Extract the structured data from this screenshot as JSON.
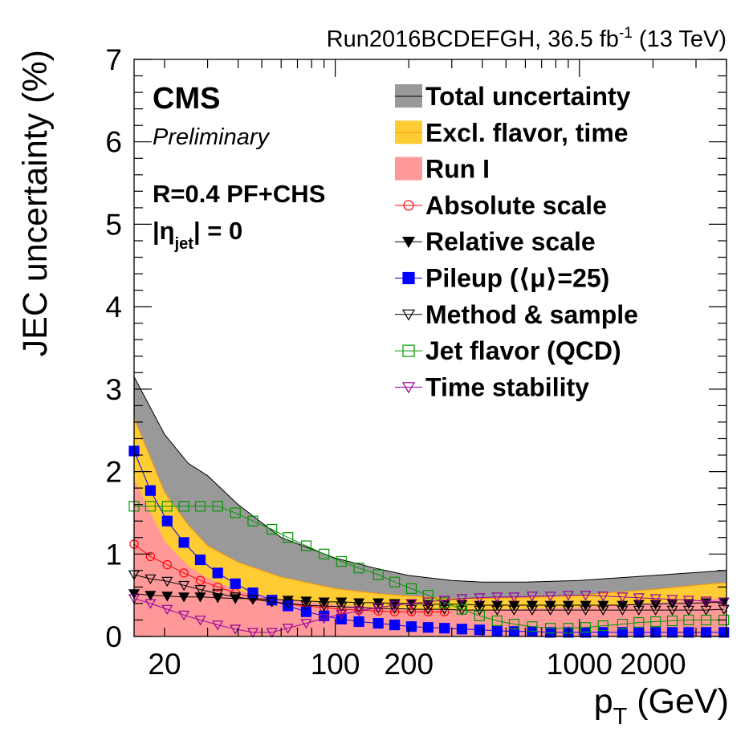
{
  "chart_data": {
    "type": "area",
    "top_label": {
      "prefix": "Run2016BCDEFGH, 36.5 fb",
      "exp": "-1",
      "suffix": " (13 TeV)"
    },
    "cms_label": "CMS",
    "preliminary_label": "Preliminary",
    "jet_label": "R=0.4 PF+CHS",
    "eta_label": {
      "left": "|η",
      "sub": "jet",
      "right": "| = 0"
    },
    "ylabel": "JEC uncertainty (%)",
    "xlabel": {
      "main": "p",
      "sub": "T",
      "unit": " (GeV)"
    },
    "xscale": "log",
    "xlim": [
      15,
      4000
    ],
    "ylim": [
      0,
      7
    ],
    "yticks": [
      "0",
      "1",
      "2",
      "3",
      "4",
      "5",
      "6",
      "7"
    ],
    "xticks": [
      {
        "value": 20,
        "label": "20"
      },
      {
        "value": 100,
        "label": "100"
      },
      {
        "value": 200,
        "label": "200"
      },
      {
        "value": 1000,
        "label": "1000"
      },
      {
        "value": 2000,
        "label": "2000"
      }
    ],
    "legend_position": "top-right",
    "bands": [
      {
        "name": "Total uncertainty",
        "color": "#999999",
        "line": "#000000",
        "x": [
          15,
          20,
          25,
          30,
          40,
          60,
          100,
          150,
          200,
          300,
          400,
          600,
          1000,
          2000,
          3500,
          4000
        ],
        "values": [
          3.15,
          2.45,
          2.1,
          1.95,
          1.6,
          1.2,
          0.95,
          0.82,
          0.74,
          0.68,
          0.66,
          0.66,
          0.68,
          0.74,
          0.79,
          0.8
        ]
      },
      {
        "name": "Excl. flavor, time",
        "color": "#ffcc33",
        "line": "#ff9900",
        "x": [
          15,
          20,
          25,
          30,
          40,
          60,
          100,
          150,
          200,
          300,
          400,
          600,
          1000,
          2000,
          3500,
          4000
        ],
        "values": [
          2.65,
          1.75,
          1.35,
          1.1,
          0.9,
          0.72,
          0.58,
          0.52,
          0.49,
          0.46,
          0.46,
          0.47,
          0.5,
          0.57,
          0.64,
          0.65
        ]
      },
      {
        "name": "Run I",
        "color": "#ff9999",
        "line": "#ff9999",
        "x": [
          15,
          20,
          25,
          30,
          40,
          60,
          100,
          150,
          200,
          300,
          400,
          600,
          1000,
          2000,
          3500,
          4000
        ],
        "values": [
          1.9,
          1.15,
          0.85,
          0.7,
          0.55,
          0.45,
          0.38,
          0.35,
          0.33,
          0.32,
          0.32,
          0.33,
          0.35,
          0.4,
          0.45,
          0.47
        ]
      }
    ],
    "series": [
      {
        "name": "Absolute scale",
        "color": "#ff0000",
        "marker": "circle-open",
        "x": [
          15,
          17.5,
          20.5,
          24,
          28,
          33,
          39,
          46,
          55,
          64,
          76,
          90,
          106,
          125,
          150,
          175,
          205,
          240,
          280
        ],
        "values": [
          1.12,
          0.97,
          0.87,
          0.77,
          0.68,
          0.6,
          0.53,
          0.47,
          0.43,
          0.39,
          0.37,
          0.35,
          0.33,
          0.32,
          0.31,
          0.3,
          0.3,
          0.3,
          0.3
        ]
      },
      {
        "name": "Relative scale",
        "color": "#000000",
        "marker": "triangle-down-filled",
        "x": [
          15,
          17.5,
          20.5,
          24,
          28,
          33,
          39,
          46,
          55,
          64,
          76,
          90,
          106,
          125,
          150,
          175,
          205,
          240,
          280,
          330,
          390,
          460,
          540,
          640,
          760,
          900,
          1060,
          1250,
          1500,
          1750,
          2050,
          2400,
          2800,
          3300,
          3900
        ],
        "values": [
          0.52,
          0.5,
          0.49,
          0.48,
          0.48,
          0.47,
          0.46,
          0.46,
          0.45,
          0.44,
          0.43,
          0.42,
          0.42,
          0.41,
          0.41,
          0.4,
          0.4,
          0.39,
          0.39,
          0.39,
          0.38,
          0.38,
          0.38,
          0.38,
          0.38,
          0.38,
          0.38,
          0.38,
          0.38,
          0.39,
          0.39,
          0.4,
          0.4,
          0.41,
          0.42
        ]
      },
      {
        "name": "Pileup (⟨μ⟩=25)",
        "color": "#0000ff",
        "marker": "square-filled",
        "x": [
          15,
          17.5,
          20.5,
          24,
          28,
          33,
          39,
          46,
          55,
          64,
          76,
          90,
          106,
          125,
          150,
          175,
          205,
          240,
          280,
          330,
          390,
          460,
          540,
          640,
          760,
          900,
          1060,
          1250,
          1500,
          1750,
          2050,
          2400,
          2800,
          3300,
          3900
        ],
        "values": [
          2.25,
          1.77,
          1.4,
          1.14,
          0.93,
          0.77,
          0.64,
          0.53,
          0.44,
          0.37,
          0.3,
          0.25,
          0.21,
          0.18,
          0.16,
          0.14,
          0.12,
          0.11,
          0.1,
          0.09,
          0.08,
          0.07,
          0.06,
          0.06,
          0.05,
          0.05,
          0.05,
          0.05,
          0.05,
          0.05,
          0.05,
          0.05,
          0.05,
          0.05,
          0.05
        ]
      },
      {
        "name": "Method & sample",
        "color": "#000000",
        "marker": "triangle-down-open",
        "x": [
          15,
          17.5,
          20.5,
          24,
          28,
          33,
          39,
          46,
          55,
          64,
          76,
          90,
          106,
          125,
          150,
          175,
          205,
          240,
          280,
          330,
          390,
          460,
          540,
          640,
          760,
          900,
          1060,
          1250,
          1500,
          1750,
          2050,
          2400,
          2800,
          3300,
          3900
        ],
        "values": [
          0.75,
          0.7,
          0.67,
          0.62,
          0.57,
          0.52,
          0.48,
          0.45,
          0.42,
          0.4,
          0.38,
          0.37,
          0.36,
          0.35,
          0.34,
          0.34,
          0.33,
          0.33,
          0.33,
          0.32,
          0.32,
          0.32,
          0.32,
          0.32,
          0.32,
          0.32,
          0.32,
          0.32,
          0.32,
          0.32,
          0.32,
          0.32,
          0.32,
          0.32,
          0.33
        ]
      },
      {
        "name": "Jet flavor (QCD)",
        "color": "#009900",
        "marker": "square-open",
        "x": [
          15,
          17.5,
          20.5,
          24,
          28,
          33,
          39,
          46,
          55,
          64,
          76,
          90,
          106,
          125,
          150,
          175,
          205,
          240,
          280,
          330,
          390,
          460,
          540,
          640,
          760,
          900,
          1060,
          1250,
          1500,
          1750,
          2050,
          2400,
          2800,
          3300,
          3900
        ],
        "values": [
          1.58,
          1.58,
          1.58,
          1.58,
          1.58,
          1.58,
          1.5,
          1.4,
          1.3,
          1.2,
          1.1,
          1.0,
          0.91,
          0.83,
          0.75,
          0.66,
          0.58,
          0.5,
          0.41,
          0.33,
          0.25,
          0.19,
          0.15,
          0.12,
          0.1,
          0.1,
          0.11,
          0.13,
          0.15,
          0.17,
          0.18,
          0.19,
          0.2,
          0.2,
          0.2
        ]
      },
      {
        "name": "Time stability",
        "color": "#990099",
        "marker": "triangle-down-open",
        "x": [
          15,
          17.5,
          20.5,
          24,
          28,
          33,
          39,
          46,
          55,
          64,
          76,
          90,
          106,
          125,
          150,
          175,
          205,
          240,
          280,
          330,
          390,
          460,
          540,
          640,
          760,
          900,
          1060,
          1250,
          1500,
          1750,
          2050,
          2400,
          2800,
          3300,
          3900
        ],
        "values": [
          0.46,
          0.4,
          0.33,
          0.26,
          0.2,
          0.14,
          0.09,
          0.05,
          0.05,
          0.1,
          0.16,
          0.22,
          0.27,
          0.31,
          0.35,
          0.38,
          0.4,
          0.42,
          0.44,
          0.46,
          0.47,
          0.48,
          0.48,
          0.49,
          0.49,
          0.5,
          0.5,
          0.49,
          0.48,
          0.47,
          0.46,
          0.45,
          0.44,
          0.43,
          0.42
        ]
      }
    ],
    "legend": [
      {
        "label": "Total uncertainty",
        "kind": "band",
        "color": "#999999",
        "line": "#000000"
      },
      {
        "label": "Excl. flavor, time",
        "kind": "band",
        "color": "#ffcc33",
        "line": "#ff9900"
      },
      {
        "label": "Run I",
        "kind": "band",
        "color": "#ff9999",
        "line": "#ff9999"
      },
      {
        "label": "Absolute scale",
        "kind": "marker",
        "color": "#ff0000",
        "marker": "circle-open"
      },
      {
        "label": "Relative scale",
        "kind": "marker",
        "color": "#000000",
        "marker": "triangle-down-filled"
      },
      {
        "label": "Pileup (⟨μ⟩=25)",
        "kind": "marker",
        "color": "#0000ff",
        "marker": "square-filled"
      },
      {
        "label": "Method & sample",
        "kind": "marker",
        "color": "#000000",
        "marker": "triangle-down-open"
      },
      {
        "label": "Jet flavor (QCD)",
        "kind": "marker",
        "color": "#009900",
        "marker": "square-open"
      },
      {
        "label": "Time stability",
        "kind": "marker",
        "color": "#990099",
        "marker": "triangle-down-open"
      }
    ]
  }
}
